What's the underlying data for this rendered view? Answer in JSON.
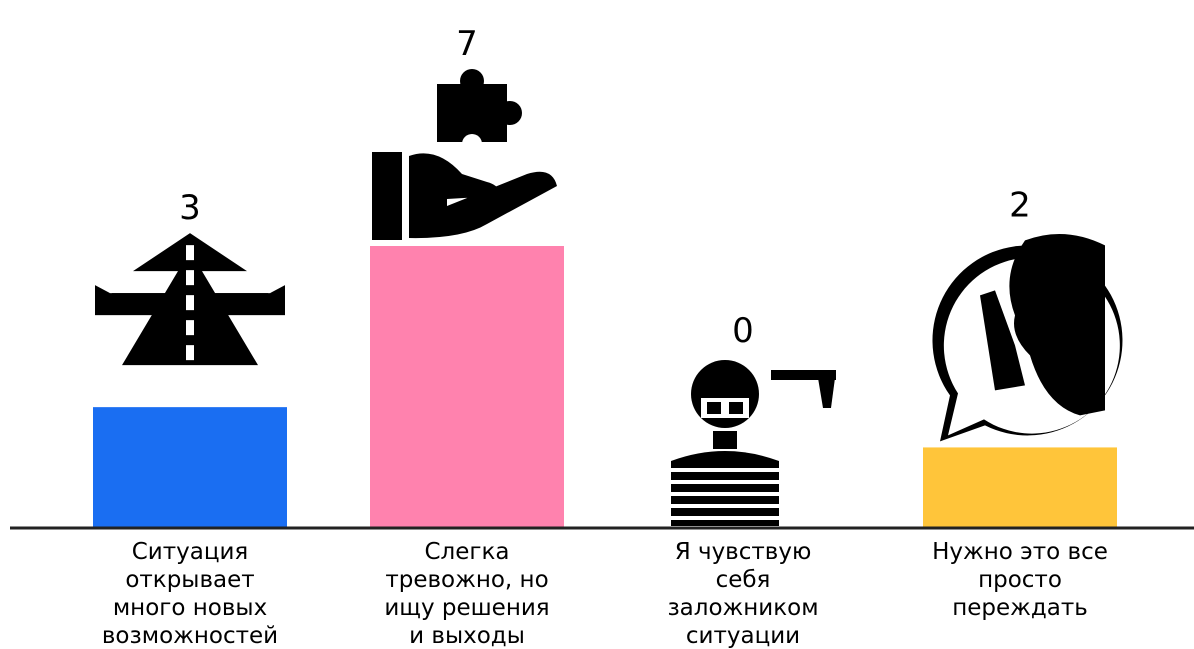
{
  "chart_data": {
    "type": "bar",
    "categories": [
      "Ситуация открывает много новых возможностей",
      "Слегка тревожно, но ищу решения и выходы",
      "Я чувствую себя заложником ситуации",
      "Нужно это все просто переждать"
    ],
    "category_lines": [
      [
        "Ситуация",
        "открывает",
        "много новых",
        "возможностей"
      ],
      [
        "Слегка",
        "тревожно, но",
        "ищу решения",
        "и выходы"
      ],
      [
        "Я чувствую",
        "себя",
        "заложником",
        "ситуации"
      ],
      [
        "Нужно это все",
        "просто",
        "переждать"
      ]
    ],
    "values": [
      3,
      7,
      0,
      2
    ],
    "value_labels": [
      "3",
      "7",
      "0",
      "2"
    ],
    "colors": [
      "#1a6ef2",
      "#ff82ae",
      "#ffffff",
      "#ffc53a"
    ],
    "icons": [
      "road-intersection-icon",
      "hand-puzzle-icon",
      "hostage-icon",
      "silence-speech-icon"
    ],
    "ylim": [
      0,
      7
    ],
    "grid": false,
    "legend": "none"
  }
}
